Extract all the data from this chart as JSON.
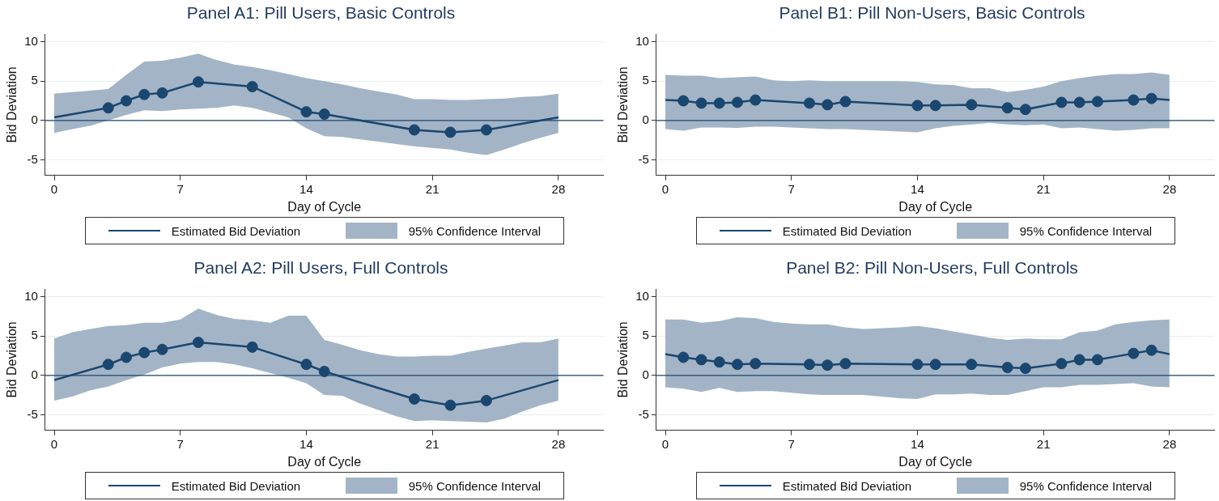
{
  "chart_data": [
    {
      "type": "line",
      "title": "Panel A1: Pill Users, Basic Controls",
      "xlabel": "Day of Cycle",
      "ylabel": "Bid Deviation",
      "xlim": [
        -0.5,
        30.5
      ],
      "xticks": [
        0,
        7,
        14,
        21,
        28
      ],
      "ylim": [
        -7,
        11
      ],
      "yticks": [
        -5,
        0,
        5,
        10
      ],
      "grid": "y",
      "legend": "bottom",
      "ref_lines": [
        {
          "axis": "y",
          "value": 0,
          "color": "#1a476f"
        }
      ],
      "series": [
        {
          "name": "Estimated Bid Deviation",
          "type": "line",
          "marker": "none",
          "color": "#1a476f",
          "x": [
            0,
            1,
            2,
            3,
            4,
            5,
            6,
            7,
            8,
            9,
            10,
            11,
            12,
            13,
            14,
            15,
            16,
            17,
            18,
            19,
            20,
            21,
            22,
            23,
            24,
            25,
            26,
            27,
            28
          ],
          "values": [
            0.4,
            null,
            null,
            1.6,
            2.5,
            3.3,
            3.5,
            null,
            4.9,
            null,
            null,
            4.3,
            null,
            null,
            1.1,
            0.8,
            null,
            null,
            null,
            null,
            -1.2,
            null,
            -1.5,
            null,
            -1.2,
            null,
            null,
            null,
            0.4
          ],
          "lower": [
            -1.6,
            -1.1,
            -0.7,
            0,
            0.7,
            1.3,
            1.2,
            1.4,
            1.5,
            1.6,
            1.9,
            1.6,
            1,
            0.4,
            -1,
            -2,
            -2.1,
            -2.4,
            -2.7,
            -3,
            -3.3,
            -3.5,
            -3.7,
            -4.1,
            -4.4,
            -3.7,
            -2.9,
            -2.2,
            -1.6
          ],
          "upper": [
            3.4,
            3.6,
            3.8,
            4,
            5.8,
            7.5,
            7.6,
            8,
            8.5,
            7.7,
            7.1,
            6.8,
            6.4,
            5.9,
            5.4,
            5,
            4.6,
            4.1,
            3.7,
            3.3,
            2.7,
            2.7,
            2.6,
            2.6,
            2.7,
            2.8,
            3,
            3.1,
            3.4
          ]
        },
        {
          "type": "scatter",
          "marker": "circle",
          "color": "#1a476f",
          "x": [
            3,
            4,
            5,
            6,
            8,
            11,
            14,
            15,
            20,
            22,
            24
          ],
          "values": [
            1.6,
            2.5,
            3.3,
            3.5,
            4.9,
            4.3,
            1.1,
            0.8,
            -1.2,
            -1.5,
            -1.2
          ]
        },
        {
          "name": "95% Confidence Interval",
          "type": "area",
          "color": "#a3b4c6"
        }
      ]
    },
    {
      "type": "line",
      "title": "Panel B1: Pill Non-Users, Basic Controls",
      "xlabel": "Day of Cycle",
      "ylabel": "Bid Deviation",
      "xlim": [
        -0.5,
        30.5
      ],
      "xticks": [
        0,
        7,
        14,
        21,
        28
      ],
      "ylim": [
        -7,
        11
      ],
      "yticks": [
        -5,
        0,
        5,
        10
      ],
      "grid": "y",
      "legend": "bottom",
      "ref_lines": [
        {
          "axis": "y",
          "value": 0,
          "color": "#1a476f"
        }
      ],
      "series": [
        {
          "name": "Estimated Bid Deviation",
          "type": "line",
          "marker": "none",
          "color": "#1a476f",
          "x": [
            0,
            1,
            2,
            3,
            4,
            5,
            6,
            7,
            8,
            9,
            10,
            11,
            12,
            13,
            14,
            15,
            16,
            17,
            18,
            19,
            20,
            21,
            22,
            23,
            24,
            25,
            26,
            27,
            28
          ],
          "values": [
            2.6,
            2.5,
            2.2,
            2.2,
            2.3,
            2.6,
            null,
            null,
            2.2,
            2,
            2.4,
            null,
            null,
            null,
            1.9,
            1.9,
            null,
            2,
            null,
            1.6,
            1.4,
            null,
            2.3,
            2.3,
            2.4,
            null,
            2.6,
            2.8,
            2.6
          ],
          "lower": [
            -1.1,
            -1.3,
            -0.9,
            -0.9,
            -0.95,
            -0.8,
            -0.8,
            -0.9,
            -1,
            -1.1,
            -1.1,
            -1.2,
            -1.3,
            -1.4,
            -1.5,
            -1,
            -0.7,
            -0.5,
            -0.3,
            -0.5,
            -0.6,
            -0.5,
            -1,
            -0.9,
            -1.1,
            -1.3,
            -1.2,
            -1,
            -1
          ],
          "upper": [
            5.8,
            5.7,
            5.7,
            5.4,
            5.5,
            5.6,
            5.1,
            5,
            5.1,
            5,
            5,
            5,
            5,
            5,
            4.9,
            4.6,
            4.5,
            4.1,
            4.1,
            3.6,
            3.9,
            4.3,
            5,
            5.4,
            5.7,
            5.9,
            5.9,
            6.1,
            5.8
          ]
        },
        {
          "type": "scatter",
          "marker": "circle",
          "color": "#1a476f",
          "x": [
            1,
            2,
            3,
            4,
            5,
            8,
            9,
            10,
            14,
            15,
            17,
            19,
            20,
            22,
            23,
            24,
            26,
            27
          ],
          "values": [
            2.5,
            2.2,
            2.2,
            2.3,
            2.6,
            2.2,
            2,
            2.4,
            1.9,
            1.9,
            2,
            1.6,
            1.4,
            2.3,
            2.3,
            2.4,
            2.6,
            2.8
          ]
        },
        {
          "name": "95% Confidence Interval",
          "type": "area",
          "color": "#a3b4c6"
        }
      ]
    },
    {
      "type": "line",
      "title": "Panel A2: Pill Users, Full Controls",
      "xlabel": "Day of Cycle",
      "ylabel": "Bid Deviation",
      "xlim": [
        -0.5,
        30.5
      ],
      "xticks": [
        0,
        7,
        14,
        21,
        28
      ],
      "ylim": [
        -7,
        11
      ],
      "yticks": [
        -5,
        0,
        5,
        10
      ],
      "grid": "y",
      "legend": "bottom",
      "ref_lines": [
        {
          "axis": "y",
          "value": 0,
          "color": "#1a476f"
        }
      ],
      "series": [
        {
          "name": "Estimated Bid Deviation",
          "type": "line",
          "marker": "none",
          "color": "#1a476f",
          "x": [
            0,
            1,
            2,
            3,
            4,
            5,
            6,
            7,
            8,
            9,
            10,
            11,
            12,
            13,
            14,
            15,
            16,
            17,
            18,
            19,
            20,
            21,
            22,
            23,
            24,
            25,
            26,
            27,
            28
          ],
          "values": [
            -0.6,
            null,
            null,
            1.4,
            2.3,
            2.9,
            3.3,
            null,
            4.2,
            null,
            null,
            3.6,
            null,
            null,
            1.4,
            0.5,
            null,
            null,
            null,
            null,
            -3,
            null,
            -3.8,
            null,
            -3.2,
            null,
            null,
            null,
            -0.6
          ],
          "lower": [
            -3.2,
            -2.7,
            -1.9,
            -1.4,
            -0.6,
            0.1,
            1,
            1.5,
            1.7,
            1.7,
            1.4,
            0.9,
            0.3,
            -0.3,
            -1,
            -2.5,
            -2.6,
            -3.6,
            -4.4,
            -5.2,
            -5.8,
            -5.7,
            -5.8,
            -5.9,
            -6,
            -5.5,
            -4.6,
            -3.8,
            -3.2
          ],
          "upper": [
            4.7,
            5.5,
            5.9,
            6.3,
            6.4,
            6.7,
            6.7,
            7.1,
            8.5,
            7.7,
            7.2,
            7,
            6.7,
            7.6,
            7.6,
            4.5,
            3.9,
            3.2,
            2.7,
            2.4,
            2.4,
            2.5,
            2.5,
            3,
            3.4,
            3.8,
            4.2,
            4.2,
            4.7
          ]
        },
        {
          "type": "scatter",
          "marker": "circle",
          "color": "#1a476f",
          "x": [
            3,
            4,
            5,
            6,
            8,
            11,
            14,
            15,
            20,
            22,
            24
          ],
          "values": [
            1.4,
            2.3,
            2.9,
            3.3,
            4.2,
            3.6,
            1.4,
            0.5,
            -3,
            -3.8,
            -3.2
          ]
        },
        {
          "name": "95% Confidence Interval",
          "type": "area",
          "color": "#a3b4c6"
        }
      ]
    },
    {
      "type": "line",
      "title": "Panel B2: Pill Non-Users, Full Controls",
      "xlabel": "Day of Cycle",
      "ylabel": "Bid Deviation",
      "xlim": [
        -0.5,
        30.5
      ],
      "xticks": [
        0,
        7,
        14,
        21,
        28
      ],
      "ylim": [
        -7,
        11
      ],
      "yticks": [
        -5,
        0,
        5,
        10
      ],
      "grid": "y",
      "legend": "bottom",
      "ref_lines": [
        {
          "axis": "y",
          "value": 0,
          "color": "#1a476f"
        }
      ],
      "series": [
        {
          "name": "Estimated Bid Deviation",
          "type": "line",
          "marker": "none",
          "color": "#1a476f",
          "x": [
            0,
            1,
            2,
            3,
            4,
            5,
            6,
            7,
            8,
            9,
            10,
            11,
            12,
            13,
            14,
            15,
            16,
            17,
            18,
            19,
            20,
            21,
            22,
            23,
            24,
            25,
            26,
            27,
            28
          ],
          "values": [
            2.7,
            2.3,
            2,
            1.7,
            1.4,
            1.5,
            null,
            null,
            1.4,
            1.3,
            1.5,
            null,
            null,
            null,
            1.4,
            1.4,
            null,
            1.4,
            null,
            1,
            0.9,
            null,
            1.5,
            2,
            2,
            null,
            2.8,
            3.2,
            2.7
          ],
          "lower": [
            -1.5,
            -1.7,
            -2.1,
            -1.6,
            -2.1,
            -2,
            -2,
            -2.2,
            -2.4,
            -2.5,
            -2.5,
            -2.5,
            -2.7,
            -2.9,
            -3,
            -2.4,
            -2.4,
            -2.3,
            -2.5,
            -2.5,
            -2,
            -1.5,
            -1.5,
            -1.2,
            -1.2,
            -1.1,
            -1,
            -1.4,
            -1.5
          ],
          "upper": [
            7.1,
            7.1,
            6.7,
            6.9,
            7.4,
            7.3,
            6.8,
            6.6,
            6.5,
            6.5,
            6.1,
            5.9,
            6,
            6.1,
            6.3,
            6,
            5.6,
            5.2,
            4.8,
            4.5,
            4.7,
            4.6,
            4.6,
            5.5,
            5.7,
            6.5,
            6.8,
            7,
            7.1
          ]
        },
        {
          "type": "scatter",
          "marker": "circle",
          "color": "#1a476f",
          "x": [
            1,
            2,
            3,
            4,
            5,
            8,
            9,
            10,
            14,
            15,
            17,
            19,
            20,
            22,
            23,
            24,
            26,
            27
          ],
          "values": [
            2.3,
            2,
            1.7,
            1.4,
            1.5,
            1.4,
            1.3,
            1.5,
            1.4,
            1.4,
            1.4,
            1,
            0.9,
            1.5,
            2,
            2,
            2.8,
            3.2
          ]
        },
        {
          "name": "95% Confidence Interval",
          "type": "area",
          "color": "#a3b4c6"
        }
      ]
    }
  ]
}
